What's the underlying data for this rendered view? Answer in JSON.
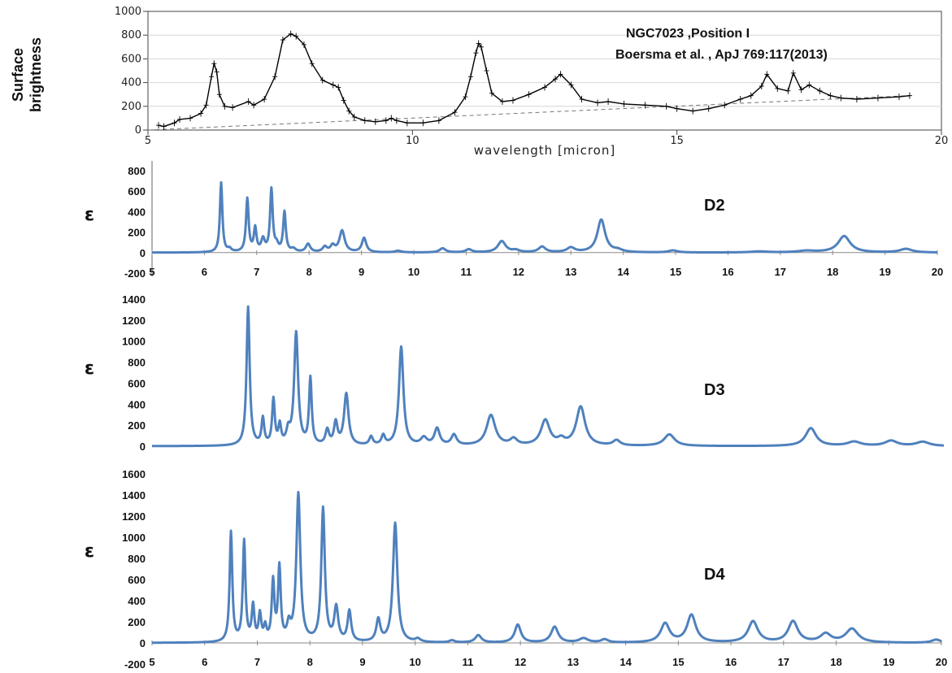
{
  "chart_data": [
    {
      "type": "line",
      "title_lines": [
        "NGC7023 ,Position I",
        "Boersma et al. , ApJ 769:117(2013)"
      ],
      "xlabel": "wavelength [micron]",
      "ylabel_lines": [
        "Surface",
        "brightness"
      ],
      "xlim": [
        5,
        20
      ],
      "ylim": [
        0,
        1000
      ],
      "x_ticks": [
        5,
        10,
        15,
        20
      ],
      "y_ticks": [
        0,
        200,
        400,
        600,
        800,
        1000
      ],
      "line_color": "#000000",
      "baseline_style": "dashed",
      "baseline": {
        "x": [
          5.0,
          19.4
        ],
        "y": [
          0,
          290
        ]
      },
      "series": [
        {
          "x": [
            5.2,
            5.3,
            5.5,
            5.6,
            5.8,
            6.0,
            6.1,
            6.2,
            6.25,
            6.3,
            6.35,
            6.45,
            6.6,
            6.9,
            7.0,
            7.2,
            7.4,
            7.55,
            7.7,
            7.8,
            7.95,
            8.1,
            8.3,
            8.5,
            8.6,
            8.7,
            8.8,
            8.9,
            9.1,
            9.3,
            9.5,
            9.6,
            9.7,
            9.9,
            10.2,
            10.5,
            10.8,
            11.0,
            11.1,
            11.2,
            11.25,
            11.3,
            11.4,
            11.5,
            11.7,
            11.9,
            12.2,
            12.5,
            12.7,
            12.8,
            13.0,
            13.2,
            13.5,
            13.7,
            14.0,
            14.4,
            14.8,
            15.0,
            15.3,
            15.6,
            15.9,
            16.2,
            16.4,
            16.6,
            16.7,
            16.9,
            17.1,
            17.2,
            17.35,
            17.5,
            17.7,
            17.9,
            18.1,
            18.4,
            18.8,
            19.2,
            19.4
          ],
          "y": [
            40,
            30,
            60,
            90,
            100,
            140,
            210,
            450,
            560,
            490,
            300,
            200,
            190,
            240,
            210,
            260,
            450,
            760,
            810,
            790,
            720,
            560,
            420,
            380,
            360,
            250,
            160,
            110,
            80,
            70,
            80,
            100,
            80,
            60,
            60,
            80,
            150,
            280,
            450,
            650,
            730,
            700,
            500,
            310,
            240,
            250,
            300,
            360,
            430,
            470,
            380,
            260,
            230,
            240,
            220,
            210,
            200,
            180,
            160,
            180,
            210,
            260,
            290,
            370,
            470,
            350,
            330,
            480,
            340,
            380,
            330,
            290,
            270,
            260,
            270,
            280,
            290
          ]
        }
      ]
    },
    {
      "type": "line",
      "panel_label": "D2",
      "ylabel": "ε",
      "xlim": [
        5,
        20
      ],
      "ylim": [
        -200,
        800
      ],
      "x_ticks": [
        5,
        6,
        7,
        8,
        9,
        10,
        11,
        12,
        13,
        14,
        15,
        16,
        17,
        18,
        19,
        20
      ],
      "y_ticks": [
        -200,
        0,
        200,
        400,
        600,
        800
      ],
      "line_color": "#4f81bd",
      "series": [
        {
          "baseline": 0,
          "peaks": [
            {
              "center": 6.32,
              "height": 680,
              "width": 0.028
            },
            {
              "center": 6.48,
              "height": 30,
              "width": 0.04
            },
            {
              "center": 6.82,
              "height": 520,
              "width": 0.03
            },
            {
              "center": 6.97,
              "height": 230,
              "width": 0.03
            },
            {
              "center": 7.12,
              "height": 120,
              "width": 0.04
            },
            {
              "center": 7.28,
              "height": 610,
              "width": 0.03
            },
            {
              "center": 7.38,
              "height": 60,
              "width": 0.04
            },
            {
              "center": 7.53,
              "height": 390,
              "width": 0.03
            },
            {
              "center": 7.7,
              "height": 30,
              "width": 0.05
            },
            {
              "center": 7.98,
              "height": 80,
              "width": 0.05
            },
            {
              "center": 8.3,
              "height": 50,
              "width": 0.05
            },
            {
              "center": 8.45,
              "height": 60,
              "width": 0.05
            },
            {
              "center": 8.63,
              "height": 210,
              "width": 0.06
            },
            {
              "center": 9.05,
              "height": 140,
              "width": 0.05
            },
            {
              "center": 9.7,
              "height": 15,
              "width": 0.08
            },
            {
              "center": 10.55,
              "height": 40,
              "width": 0.07
            },
            {
              "center": 11.05,
              "height": 30,
              "width": 0.07
            },
            {
              "center": 11.68,
              "height": 110,
              "width": 0.09
            },
            {
              "center": 11.95,
              "height": 20,
              "width": 0.08
            },
            {
              "center": 12.45,
              "height": 55,
              "width": 0.08
            },
            {
              "center": 13.0,
              "height": 45,
              "width": 0.09
            },
            {
              "center": 13.58,
              "height": 320,
              "width": 0.09
            },
            {
              "center": 13.9,
              "height": 20,
              "width": 0.1
            },
            {
              "center": 14.95,
              "height": 20,
              "width": 0.1
            },
            {
              "center": 16.6,
              "height": 10,
              "width": 0.2
            },
            {
              "center": 17.5,
              "height": 15,
              "width": 0.2
            },
            {
              "center": 18.22,
              "height": 160,
              "width": 0.14
            },
            {
              "center": 19.4,
              "height": 35,
              "width": 0.14
            }
          ]
        }
      ]
    },
    {
      "type": "line",
      "panel_label": "D3",
      "ylabel": "ε",
      "xlim": [
        5,
        20
      ],
      "ylim": [
        0,
        1400
      ],
      "x_ticks": [
        5,
        6,
        7,
        8,
        9,
        10,
        11,
        12,
        13,
        14,
        15,
        16,
        17,
        18,
        19,
        20
      ],
      "y_ticks": [
        0,
        200,
        400,
        600,
        800,
        1000,
        1200,
        1400
      ],
      "line_color": "#4f81bd",
      "series": [
        {
          "baseline": 0,
          "peaks": [
            {
              "center": 6.82,
              "height": 1320,
              "width": 0.035
            },
            {
              "center": 7.1,
              "height": 250,
              "width": 0.03
            },
            {
              "center": 7.3,
              "height": 430,
              "width": 0.03
            },
            {
              "center": 7.42,
              "height": 180,
              "width": 0.03
            },
            {
              "center": 7.58,
              "height": 120,
              "width": 0.04
            },
            {
              "center": 7.73,
              "height": 1070,
              "width": 0.045
            },
            {
              "center": 8.0,
              "height": 630,
              "width": 0.03
            },
            {
              "center": 8.32,
              "height": 140,
              "width": 0.04
            },
            {
              "center": 8.48,
              "height": 210,
              "width": 0.04
            },
            {
              "center": 8.68,
              "height": 490,
              "width": 0.05
            },
            {
              "center": 9.15,
              "height": 80,
              "width": 0.04
            },
            {
              "center": 9.38,
              "height": 90,
              "width": 0.04
            },
            {
              "center": 9.72,
              "height": 940,
              "width": 0.05
            },
            {
              "center": 10.15,
              "height": 70,
              "width": 0.07
            },
            {
              "center": 10.4,
              "height": 160,
              "width": 0.06
            },
            {
              "center": 10.72,
              "height": 100,
              "width": 0.06
            },
            {
              "center": 11.42,
              "height": 290,
              "width": 0.1
            },
            {
              "center": 11.85,
              "height": 60,
              "width": 0.08
            },
            {
              "center": 12.45,
              "height": 240,
              "width": 0.1
            },
            {
              "center": 12.75,
              "height": 50,
              "width": 0.08
            },
            {
              "center": 13.12,
              "height": 370,
              "width": 0.1
            },
            {
              "center": 13.8,
              "height": 50,
              "width": 0.08
            },
            {
              "center": 14.8,
              "height": 110,
              "width": 0.12
            },
            {
              "center": 17.48,
              "height": 170,
              "width": 0.12
            },
            {
              "center": 18.3,
              "height": 40,
              "width": 0.15
            },
            {
              "center": 19.0,
              "height": 50,
              "width": 0.14
            },
            {
              "center": 19.6,
              "height": 40,
              "width": 0.15
            }
          ]
        }
      ]
    },
    {
      "type": "line",
      "panel_label": "D4",
      "ylabel": "ε",
      "xlim": [
        5,
        20
      ],
      "ylim": [
        -200,
        1600
      ],
      "x_ticks": [
        5,
        6,
        7,
        8,
        9,
        10,
        11,
        12,
        13,
        14,
        15,
        16,
        17,
        18,
        19,
        20
      ],
      "y_ticks": [
        -200,
        0,
        200,
        400,
        600,
        800,
        1000,
        1200,
        1400,
        1600
      ],
      "line_color": "#4f81bd",
      "series": [
        {
          "baseline": 0,
          "peaks": [
            {
              "center": 6.5,
              "height": 1040,
              "width": 0.03
            },
            {
              "center": 6.75,
              "height": 950,
              "width": 0.03
            },
            {
              "center": 6.92,
              "height": 330,
              "width": 0.03
            },
            {
              "center": 7.05,
              "height": 250,
              "width": 0.03
            },
            {
              "center": 7.15,
              "height": 130,
              "width": 0.03
            },
            {
              "center": 7.3,
              "height": 560,
              "width": 0.03
            },
            {
              "center": 7.42,
              "height": 690,
              "width": 0.03
            },
            {
              "center": 7.6,
              "height": 140,
              "width": 0.04
            },
            {
              "center": 7.78,
              "height": 1400,
              "width": 0.045
            },
            {
              "center": 8.25,
              "height": 1260,
              "width": 0.04
            },
            {
              "center": 8.5,
              "height": 320,
              "width": 0.045
            },
            {
              "center": 8.75,
              "height": 290,
              "width": 0.04
            },
            {
              "center": 9.3,
              "height": 210,
              "width": 0.045
            },
            {
              "center": 9.62,
              "height": 1130,
              "width": 0.05
            },
            {
              "center": 10.05,
              "height": 30,
              "width": 0.06
            },
            {
              "center": 10.7,
              "height": 20,
              "width": 0.06
            },
            {
              "center": 11.2,
              "height": 70,
              "width": 0.07
            },
            {
              "center": 11.95,
              "height": 170,
              "width": 0.07
            },
            {
              "center": 12.65,
              "height": 150,
              "width": 0.08
            },
            {
              "center": 13.2,
              "height": 40,
              "width": 0.1
            },
            {
              "center": 13.6,
              "height": 30,
              "width": 0.08
            },
            {
              "center": 14.75,
              "height": 180,
              "width": 0.1
            },
            {
              "center": 15.25,
              "height": 260,
              "width": 0.1
            },
            {
              "center": 16.42,
              "height": 200,
              "width": 0.11
            },
            {
              "center": 17.18,
              "height": 200,
              "width": 0.11
            },
            {
              "center": 17.8,
              "height": 80,
              "width": 0.12
            },
            {
              "center": 18.3,
              "height": 130,
              "width": 0.14
            },
            {
              "center": 19.9,
              "height": 30,
              "width": 0.1
            }
          ]
        }
      ]
    }
  ]
}
